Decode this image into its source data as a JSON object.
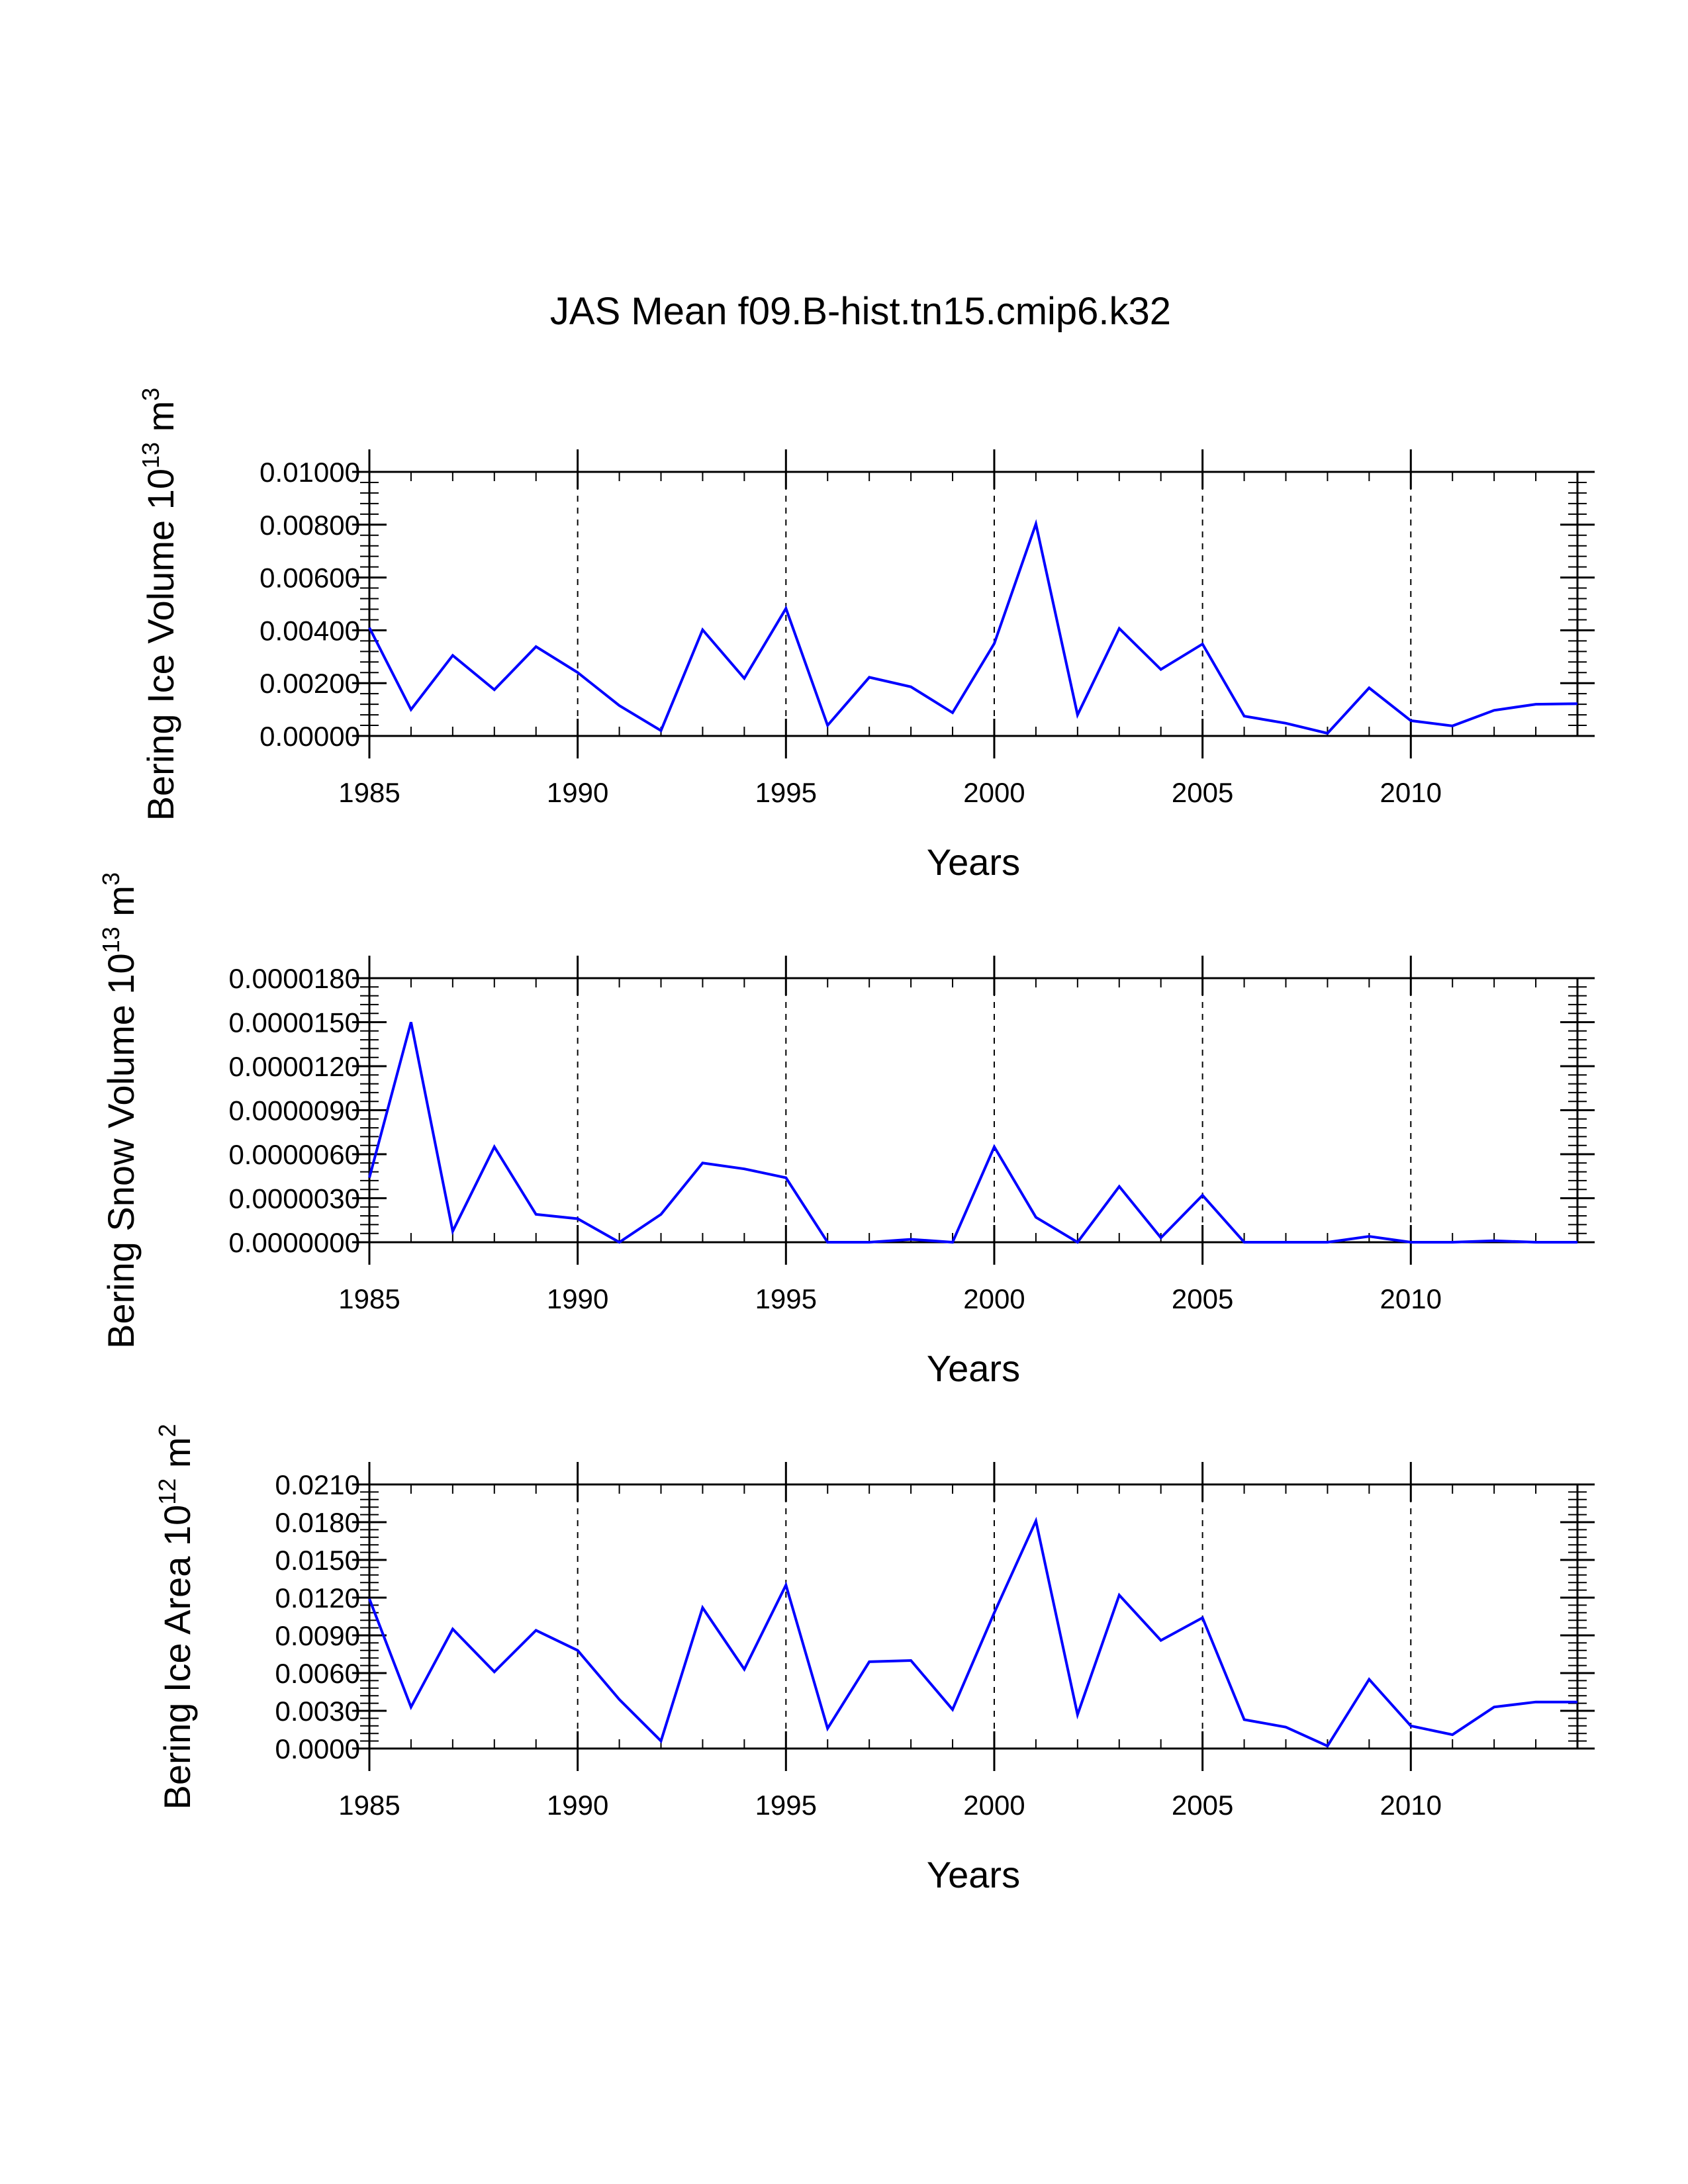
{
  "title": "JAS Mean f09.B-hist.tn15.cmip6.k32",
  "colors": {
    "line": "#0000ff",
    "axis": "#000000",
    "grid": "#000000"
  },
  "chart_data": [
    {
      "type": "line",
      "name": "ice-volume",
      "ylabel": "Bering Ice Volume 10",
      "ylabel_exp": "13",
      "ylabel_unit": "m",
      "ylabel_unit_exp": "3",
      "xlabel": "Years",
      "xlim": [
        1985,
        2014
      ],
      "ylim": [
        0,
        0.01
      ],
      "x_ticks": [
        "1985",
        "1990",
        "1995",
        "2000",
        "2005",
        "2010"
      ],
      "x_tick_values": [
        1985,
        1990,
        1995,
        2000,
        2005,
        2010
      ],
      "y_ticks": [
        "0.00000",
        "0.00200",
        "0.00400",
        "0.00600",
        "0.00800",
        "0.01000"
      ],
      "y_tick_values": [
        0,
        0.002,
        0.004,
        0.006,
        0.008,
        0.01
      ],
      "grid_x": [
        1990,
        1995,
        2000,
        2005,
        2010
      ],
      "x": [
        1985,
        1986,
        1987,
        1988,
        1989,
        1990,
        1991,
        1992,
        1993,
        1994,
        1995,
        1996,
        1997,
        1998,
        1999,
        2000,
        2001,
        2002,
        2003,
        2004,
        2005,
        2006,
        2007,
        2008,
        2009,
        2010,
        2011,
        2012,
        2013,
        2014
      ],
      "values": [
        0.0041,
        0.001,
        0.00305,
        0.00175,
        0.00338,
        0.0024,
        0.00115,
        0.0002,
        0.00402,
        0.00218,
        0.00483,
        0.0004,
        0.00222,
        0.00186,
        0.00088,
        0.0035,
        0.00803,
        0.0008,
        0.00407,
        0.00252,
        0.00348,
        0.00075,
        0.00048,
        0.0001,
        0.00182,
        0.00058,
        0.00038,
        0.00097,
        0.0012,
        0.00122
      ]
    },
    {
      "type": "line",
      "name": "snow-volume",
      "ylabel": "Bering Snow Volume 10",
      "ylabel_exp": "13",
      "ylabel_unit": "m",
      "ylabel_unit_exp": "3",
      "xlabel": "Years",
      "xlim": [
        1985,
        2014
      ],
      "ylim": [
        0,
        1.8e-05
      ],
      "x_ticks": [
        "1985",
        "1990",
        "1995",
        "2000",
        "2005",
        "2010"
      ],
      "x_tick_values": [
        1985,
        1990,
        1995,
        2000,
        2005,
        2010
      ],
      "y_ticks": [
        "0.0000000",
        "0.0000030",
        "0.0000060",
        "0.0000090",
        "0.0000120",
        "0.0000150",
        "0.0000180"
      ],
      "y_tick_values": [
        0,
        3e-06,
        6e-06,
        9e-06,
        1.2e-05,
        1.5e-05,
        1.8e-05
      ],
      "grid_x": [
        1990,
        1995,
        2000,
        2005,
        2010
      ],
      "x": [
        1985,
        1986,
        1987,
        1988,
        1989,
        1990,
        1991,
        1992,
        1993,
        1994,
        1995,
        1996,
        1997,
        1998,
        1999,
        2000,
        2001,
        2002,
        2003,
        2004,
        2005,
        2006,
        2007,
        2008,
        2009,
        2010,
        2011,
        2012,
        2013,
        2014
      ],
      "values": [
        4.4e-06,
        1.5e-05,
        7.5e-07,
        6.5e-06,
        1.9e-06,
        1.6e-06,
        0.0,
        1.9e-06,
        5.4e-06,
        5e-06,
        4.4e-06,
        0.0,
        0.0,
        2e-07,
        0.0,
        6.5e-06,
        1.7e-06,
        0.0,
        3.8e-06,
        3e-07,
        3.2e-06,
        0.0,
        0.0,
        0.0,
        4e-07,
        0.0,
        0.0,
        1e-07,
        0.0,
        0.0
      ]
    },
    {
      "type": "line",
      "name": "ice-area",
      "ylabel": "Bering Ice Area 10",
      "ylabel_exp": "12",
      "ylabel_unit": "m",
      "ylabel_unit_exp": "2",
      "xlabel": "Years",
      "xlim": [
        1985,
        2014
      ],
      "ylim": [
        0,
        0.021
      ],
      "x_ticks": [
        "1985",
        "1990",
        "1995",
        "2000",
        "2005",
        "2010"
      ],
      "x_tick_values": [
        1985,
        1990,
        1995,
        2000,
        2005,
        2010
      ],
      "y_ticks": [
        "0.0000",
        "0.0030",
        "0.0060",
        "0.0090",
        "0.0120",
        "0.0150",
        "0.0180",
        "0.0210"
      ],
      "y_tick_values": [
        0,
        0.003,
        0.006,
        0.009,
        0.012,
        0.015,
        0.018,
        0.021
      ],
      "grid_x": [
        1990,
        1995,
        2000,
        2005,
        2010
      ],
      "x": [
        1985,
        1986,
        1987,
        1988,
        1989,
        1990,
        1991,
        1992,
        1993,
        1994,
        1995,
        1996,
        1997,
        1998,
        1999,
        2000,
        2001,
        2002,
        2003,
        2004,
        2005,
        2006,
        2007,
        2008,
        2009,
        2010,
        2011,
        2012,
        2013,
        2014
      ],
      "values": [
        0.0119,
        0.0033,
        0.0095,
        0.0061,
        0.0094,
        0.0078,
        0.0039,
        0.0006,
        0.0112,
        0.0063,
        0.013,
        0.0016,
        0.0069,
        0.007,
        0.0031,
        0.0108,
        0.0181,
        0.0027,
        0.0122,
        0.0086,
        0.0104,
        0.0023,
        0.0017,
        0.0002,
        0.0055,
        0.0018,
        0.0011,
        0.0033,
        0.0037,
        0.0037
      ]
    }
  ]
}
